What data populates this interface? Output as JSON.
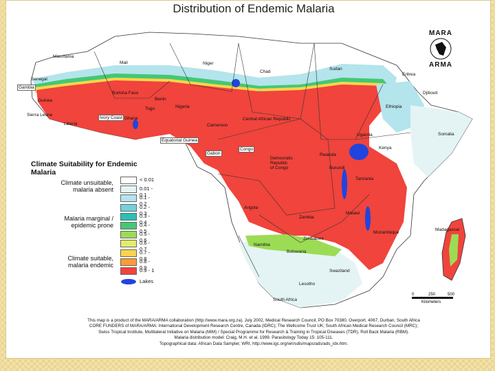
{
  "title": "Distribution of Endemic Malaria",
  "logo": {
    "top": "MARA",
    "bottom": "ARMA"
  },
  "legend": {
    "title": "Climate Suitability for Endemic Malaria",
    "groups": [
      "Climate unsuitable,\nmalaria absent",
      "Malaria marginal /\nepidemic prone",
      "Climate suitable,\nmalaria endemic"
    ],
    "bins": [
      {
        "label": "< 0.01",
        "color": "#ffffff"
      },
      {
        "label": "0.01 - 0.1",
        "color": "#e4f4f4"
      },
      {
        "label": "0.1 - 0.2",
        "color": "#b4e4ec"
      },
      {
        "label": "0.2 - 0.3",
        "color": "#74d0dc"
      },
      {
        "label": "0.3 - 0.4",
        "color": "#2cc0b4"
      },
      {
        "label": "0.4 - 0.5",
        "color": "#44c874"
      },
      {
        "label": "0.5 - 0.6",
        "color": "#9cdc54"
      },
      {
        "label": "0.6 - 0.7",
        "color": "#e4ec6c"
      },
      {
        "label": "0.7 - 0.8",
        "color": "#fcd44c"
      },
      {
        "label": "0.8 - 0.9",
        "color": "#fc9c34"
      },
      {
        "label": "0.9 - 1",
        "color": "#f0443c"
      }
    ],
    "lakes_label": "Lakes",
    "lake_color": "#2244dd"
  },
  "countries": [
    "Mauritania",
    "Mali",
    "Niger",
    "Chad",
    "Sudan",
    "Eritrea",
    "Djibouti",
    "Senegal",
    "Gambia",
    "Guinea",
    "Burkina Faso",
    "Benin",
    "Nigeria",
    "Sierra Leone",
    "Liberia",
    "Ivory Coast",
    "Ghana",
    "Togo",
    "Ethiopia",
    "Somalia",
    "Central African Republic",
    "Cameroon",
    "Equatorial Guinea",
    "Gabon",
    "Congo",
    "Uganda",
    "Kenya",
    "Rwanda",
    "Burundi",
    "Democratic Republic of Congo",
    "Tanzania",
    "Angola",
    "Zambia",
    "Malawi",
    "Mozambique",
    "Madagascar",
    "Zimbabwe",
    "Namibia",
    "Botswana",
    "Swaziland",
    "Lesotho",
    "South Africa"
  ],
  "scale": {
    "ticks": [
      "0",
      "250",
      "500"
    ],
    "unit": "Kilometers"
  },
  "credits": [
    "This map is a product of the MARA/ARMA collaboration (http://www.mara.org.za). July 2002, Medical Research Council, PO Box 70380, Overport, 4067, Durban, South Africa",
    "CORE FUNDERS of MARA/ARMA: International Development Research Centre, Canada (IDRC); The Wellcome Trust UK; South African Medical Research Council (MRC);",
    "Swiss Tropical Institute, Multilateral Initiative on Malaria (MIM) / Special Programme for Research & Training in Tropical Diseases (TDR), Roll Back Malaria (RBM).",
    "Malaria distribution model: Craig, M.H. et al. 1999. Parasitology Today 15: 105-111.",
    "Topographical data: African Data Sampler, WRI, http://www.igc.org/wri/sdis/maps/ads/ads_idx.htm."
  ]
}
